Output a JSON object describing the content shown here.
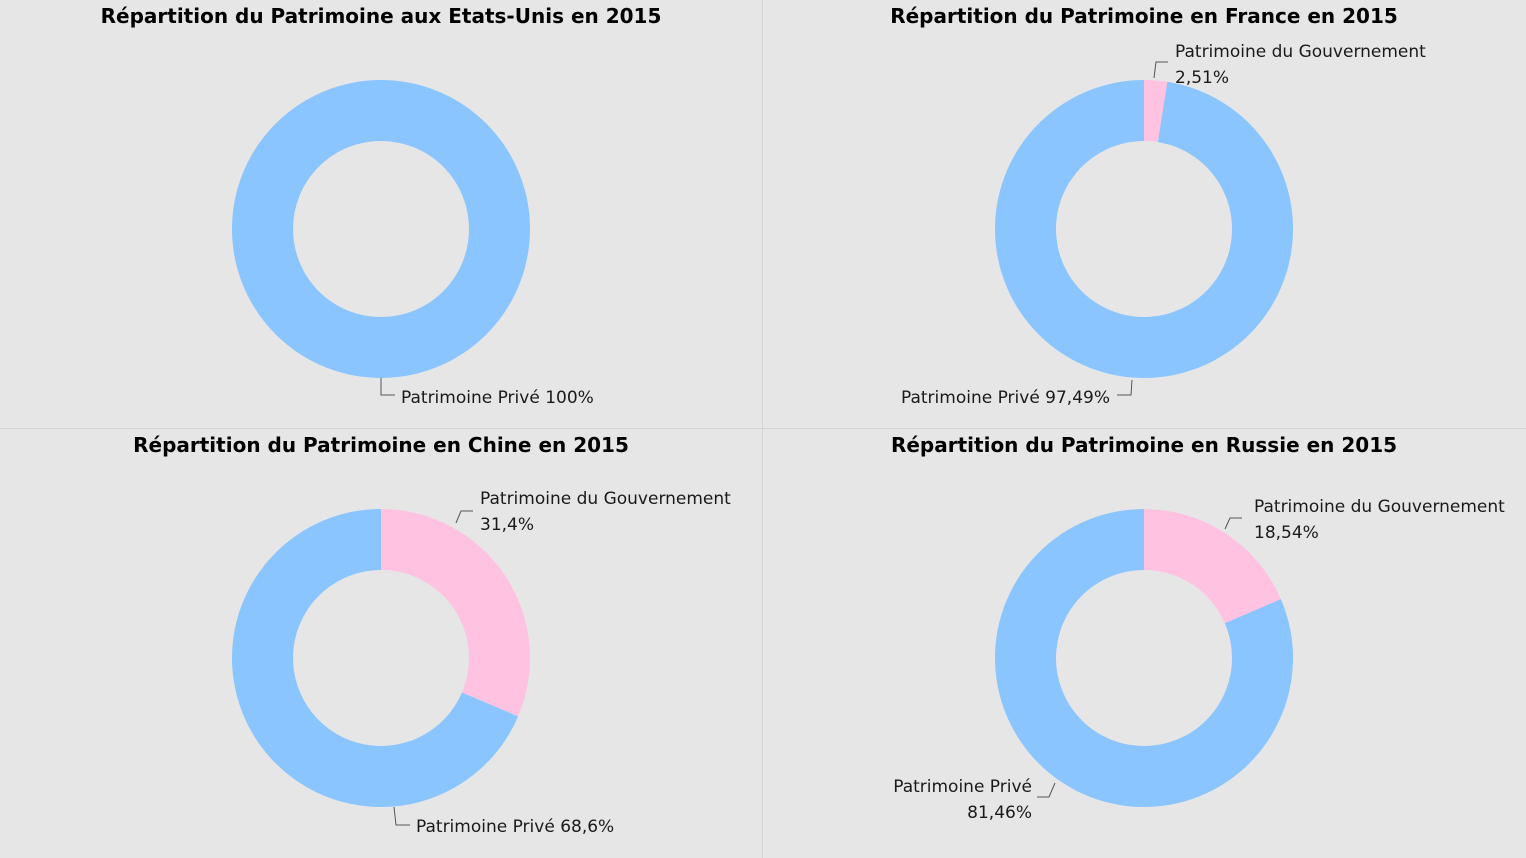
{
  "colors": {
    "prive": "#8ac5ff",
    "gouvernement": "#ffc2e1",
    "background": "#e6e6e6",
    "leader": "#555555"
  },
  "chart_data": [
    {
      "type": "pie",
      "donut": true,
      "title": "Répartition du Patrimoine aux Etats-Unis en 2015",
      "slices": [
        {
          "name": "Patrimoine Privé",
          "value": 100,
          "label": "Patrimoine Privé 100%",
          "color": "#8ac5ff"
        }
      ]
    },
    {
      "type": "pie",
      "donut": true,
      "title": "Répartition du Patrimoine en France en 2015",
      "slices": [
        {
          "name": "Patrimoine du Gouvernement",
          "value": 2.51,
          "label": [
            "Patrimoine du Gouvernement",
            "2,51%"
          ],
          "color": "#ffc2e1"
        },
        {
          "name": "Patrimoine Privé",
          "value": 97.49,
          "label": "Patrimoine Privé 97,49%",
          "color": "#8ac5ff"
        }
      ]
    },
    {
      "type": "pie",
      "donut": true,
      "title": "Répartition du Patrimoine en Chine en 2015",
      "slices": [
        {
          "name": "Patrimoine du Gouvernement",
          "value": 31.4,
          "label": [
            "Patrimoine du Gouvernement",
            "31,4%"
          ],
          "color": "#ffc2e1"
        },
        {
          "name": "Patrimoine Privé",
          "value": 68.6,
          "label": "Patrimoine Privé 68,6%",
          "color": "#8ac5ff"
        }
      ]
    },
    {
      "type": "pie",
      "donut": true,
      "title": "Répartition du Patrimoine en Russie en 2015",
      "slices": [
        {
          "name": "Patrimoine du Gouvernement",
          "value": 18.54,
          "label": [
            "Patrimoine du Gouvernement",
            "18,54%"
          ],
          "color": "#ffc2e1"
        },
        {
          "name": "Patrimoine Privé",
          "value": 81.46,
          "label": [
            "Patrimoine Privé",
            "81,46%"
          ],
          "color": "#8ac5ff"
        }
      ]
    }
  ]
}
